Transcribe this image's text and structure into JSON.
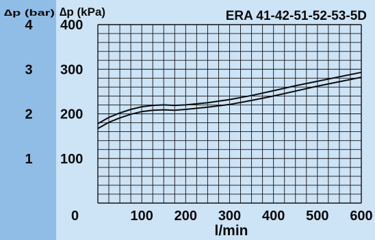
{
  "chart_data": {
    "type": "line",
    "title": "ERA 41-42-51-52-53-5D",
    "xlabel": "l/min",
    "ylabel": "∆p (kPa)",
    "y2label": "∆p (bar)",
    "xlim": [
      0,
      600
    ],
    "ylim": [
      0,
      400
    ],
    "x_ticks": [
      "0",
      "100",
      "200",
      "300",
      "400",
      "500",
      "600"
    ],
    "y_ticks": [
      "100",
      "200",
      "300",
      "400"
    ],
    "y2_ticks": [
      "1",
      "2",
      "3",
      "4"
    ],
    "grid": true,
    "series": [
      {
        "x": [
          0,
          25,
          50,
          75,
          100,
          125,
          150,
          175,
          200,
          250,
          300,
          350,
          400,
          450,
          500,
          550,
          600
        ],
        "values": [
          178,
          192,
          202,
          210,
          216,
          219,
          220,
          219,
          220,
          225,
          232,
          241,
          252,
          263,
          273,
          283,
          293
        ]
      },
      {
        "x": [
          0,
          25,
          50,
          75,
          100,
          125,
          150,
          175,
          200,
          250,
          300,
          350,
          400,
          450,
          500,
          550,
          600
        ],
        "values": [
          167,
          181,
          191,
          199,
          205,
          208,
          209,
          208,
          210,
          215,
          221,
          230,
          240,
          251,
          262,
          272,
          282
        ]
      }
    ],
    "colors": {
      "left_band": "#8fbde6",
      "plot_bg": "#cde3f6",
      "grid": "#111111",
      "line": "#0a0a0a"
    }
  }
}
